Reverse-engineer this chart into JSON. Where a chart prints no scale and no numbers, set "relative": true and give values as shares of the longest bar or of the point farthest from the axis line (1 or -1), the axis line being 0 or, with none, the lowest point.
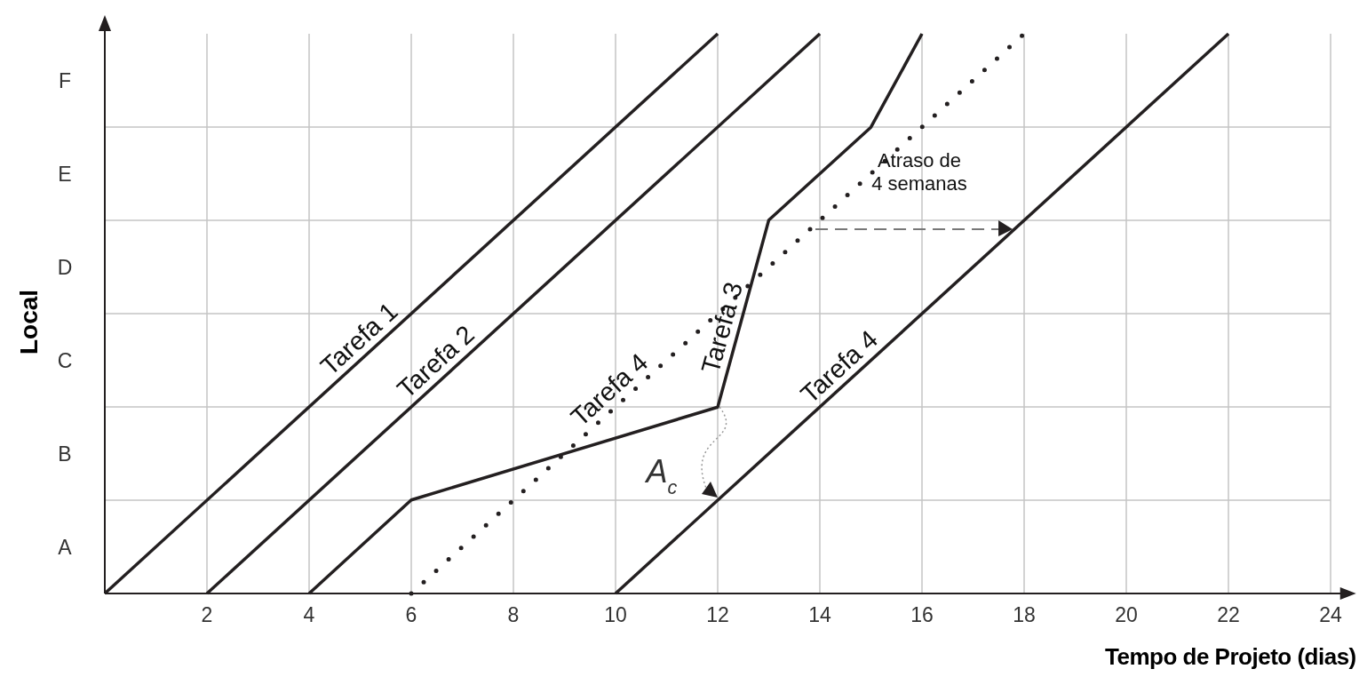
{
  "chart_data": {
    "type": "line",
    "xlabel": "Tempo de Projeto (dias)",
    "ylabel": "Local",
    "relative": true,
    "xlim": [
      0,
      24.5
    ],
    "xticks": [
      {
        "value": 0,
        "label": null
      },
      2,
      4,
      6,
      8,
      10,
      12,
      14,
      16,
      18,
      20,
      22,
      24
    ],
    "y_categories": [
      "F",
      "E",
      "D",
      "C",
      "B",
      "A"
    ],
    "grid": true,
    "marker": "none",
    "series": [
      {
        "color": "#231f20",
        "x": [
          0,
          12
        ],
        "values": [
          0,
          1
        ],
        "line_style": "solid"
      },
      {
        "color": "#231f20",
        "x": [
          2,
          14
        ],
        "values": [
          0,
          1
        ],
        "line_style": "solid"
      },
      {
        "color": "#231f20",
        "x": [
          4,
          6,
          12,
          13,
          15,
          16
        ],
        "values": [
          0,
          0.167,
          0.333,
          0.667,
          0.833,
          1
        ],
        "line_style": "solid"
      },
      {
        "color": "#231f20",
        "x": [
          6,
          18
        ],
        "values": [
          0,
          1
        ],
        "line_style": "dotted"
      },
      {
        "color": "#231f20",
        "x": [
          10,
          22
        ],
        "values": [
          0,
          1
        ],
        "line_style": "solid"
      }
    ],
    "annotations": [
      {
        "text": "Tarefa 1",
        "x": 5.2,
        "y": 0.433
      },
      {
        "text": "Tarefa 2",
        "x": 6.7,
        "y": 0.392
      },
      {
        "text": "Tarefa 4",
        "x": 10.1,
        "y": 0.342
      },
      {
        "text": "Tarefa 3",
        "x": 12.4,
        "y": 0.467
      },
      {
        "text": "Tarefa 4",
        "x": 14.6,
        "y": 0.383
      },
      "Atraso de 4 semanas",
      "A$_{c}$"
    ]
  }
}
